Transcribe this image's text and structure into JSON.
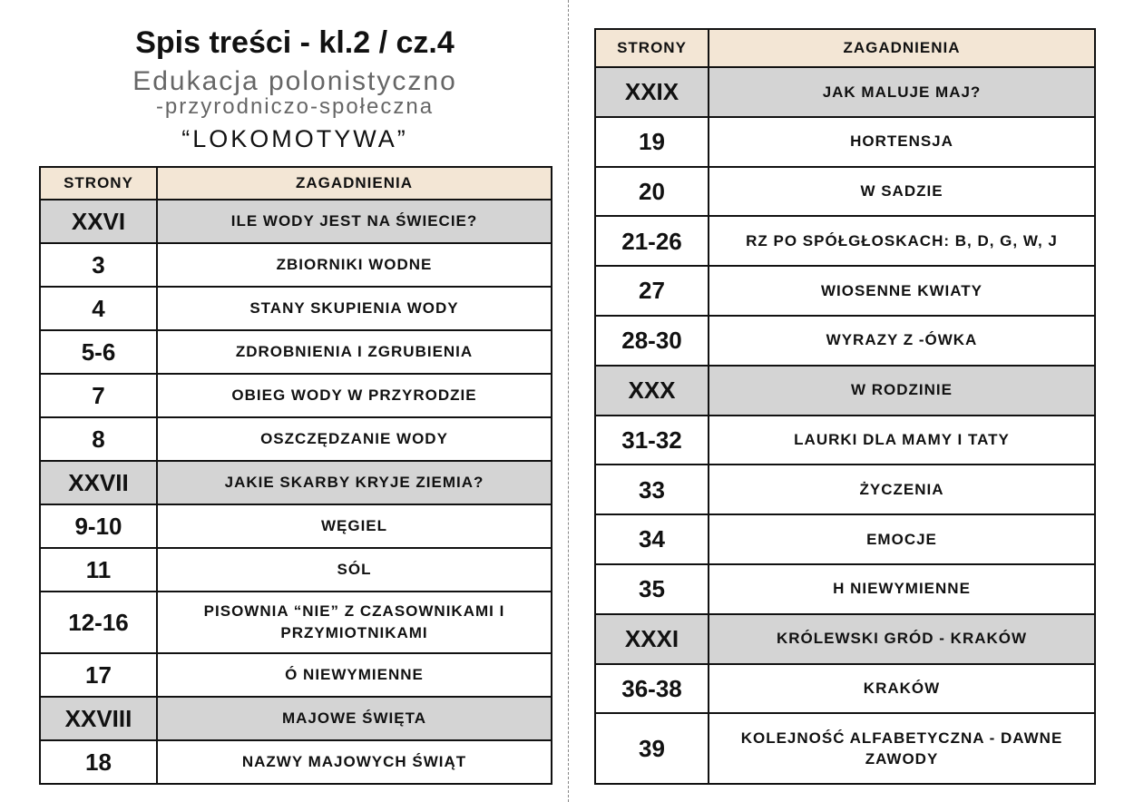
{
  "header": {
    "title": "Spis treści - kl.2 / cz.4",
    "subtitle_1": "Edukacja polonistyczno",
    "subtitle_2": "-przyrodniczo-społeczna",
    "name": "“LOKOMOTYWA”"
  },
  "left_table": {
    "header": [
      "STRONY",
      "ZAGADNIENIA"
    ],
    "rows": [
      {
        "cells": [
          "XXVI",
          "ILE WODY JEST NA ŚWIECIE?"
        ],
        "shaded": true
      },
      {
        "cells": [
          "3",
          "ZBIORNIKI WODNE"
        ]
      },
      {
        "cells": [
          "4",
          "STANY SKUPIENIA WODY"
        ]
      },
      {
        "cells": [
          "5-6",
          "ZDROBNIENIA I ZGRUBIENIA"
        ]
      },
      {
        "cells": [
          "7",
          "OBIEG WODY W PRZYRODZIE"
        ]
      },
      {
        "cells": [
          "8",
          "OSZCZĘDZANIE WODY"
        ]
      },
      {
        "cells": [
          "XXVII",
          "JAKIE SKARBY KRYJE ZIEMIA?"
        ],
        "shaded": true
      },
      {
        "cells": [
          "9-10",
          "WĘGIEL"
        ]
      },
      {
        "cells": [
          "11",
          "SÓL"
        ]
      },
      {
        "cells": [
          "12-16",
          "PISOWNIA “NIE” Z CZASOWNIKAMI I PRZYMIOTNIKAMI"
        ]
      },
      {
        "cells": [
          "17",
          "Ó NIEWYMIENNE"
        ]
      },
      {
        "cells": [
          "XXVIII",
          "MAJOWE ŚWIĘTA"
        ],
        "shaded": true
      },
      {
        "cells": [
          "18",
          "NAZWY MAJOWYCH ŚWIĄT"
        ]
      }
    ]
  },
  "right_table": {
    "header": [
      "STRONY",
      "ZAGADNIENIA"
    ],
    "rows": [
      {
        "cells": [
          "XXIX",
          "JAK MALUJE MAJ?"
        ],
        "shaded": true
      },
      {
        "cells": [
          "19",
          "HORTENSJA"
        ]
      },
      {
        "cells": [
          "20",
          "W SADZIE"
        ]
      },
      {
        "cells": [
          "21-26",
          "RZ PO SPÓŁGŁOSKACH: B, D, G, W, J"
        ]
      },
      {
        "cells": [
          "27",
          "WIOSENNE KWIATY"
        ]
      },
      {
        "cells": [
          "28-30",
          "WYRAZY Z -ÓWKA"
        ]
      },
      {
        "cells": [
          "XXX",
          "W RODZINIE"
        ],
        "shaded": true
      },
      {
        "cells": [
          "31-32",
          "LAURKI DLA MAMY I TATY"
        ]
      },
      {
        "cells": [
          "33",
          "ŻYCZENIA"
        ]
      },
      {
        "cells": [
          "34",
          "EMOCJE"
        ]
      },
      {
        "cells": [
          "35",
          "H NIEWYMIENNE"
        ]
      },
      {
        "cells": [
          "XXXI",
          "KRÓLEWSKI GRÓD - KRAKÓW"
        ],
        "shaded": true
      },
      {
        "cells": [
          "36-38",
          "KRAKÓW"
        ]
      },
      {
        "cells": [
          "39",
          "KOLEJNOŚĆ ALFABETYCZNA - DAWNE ZAWODY"
        ]
      }
    ]
  }
}
